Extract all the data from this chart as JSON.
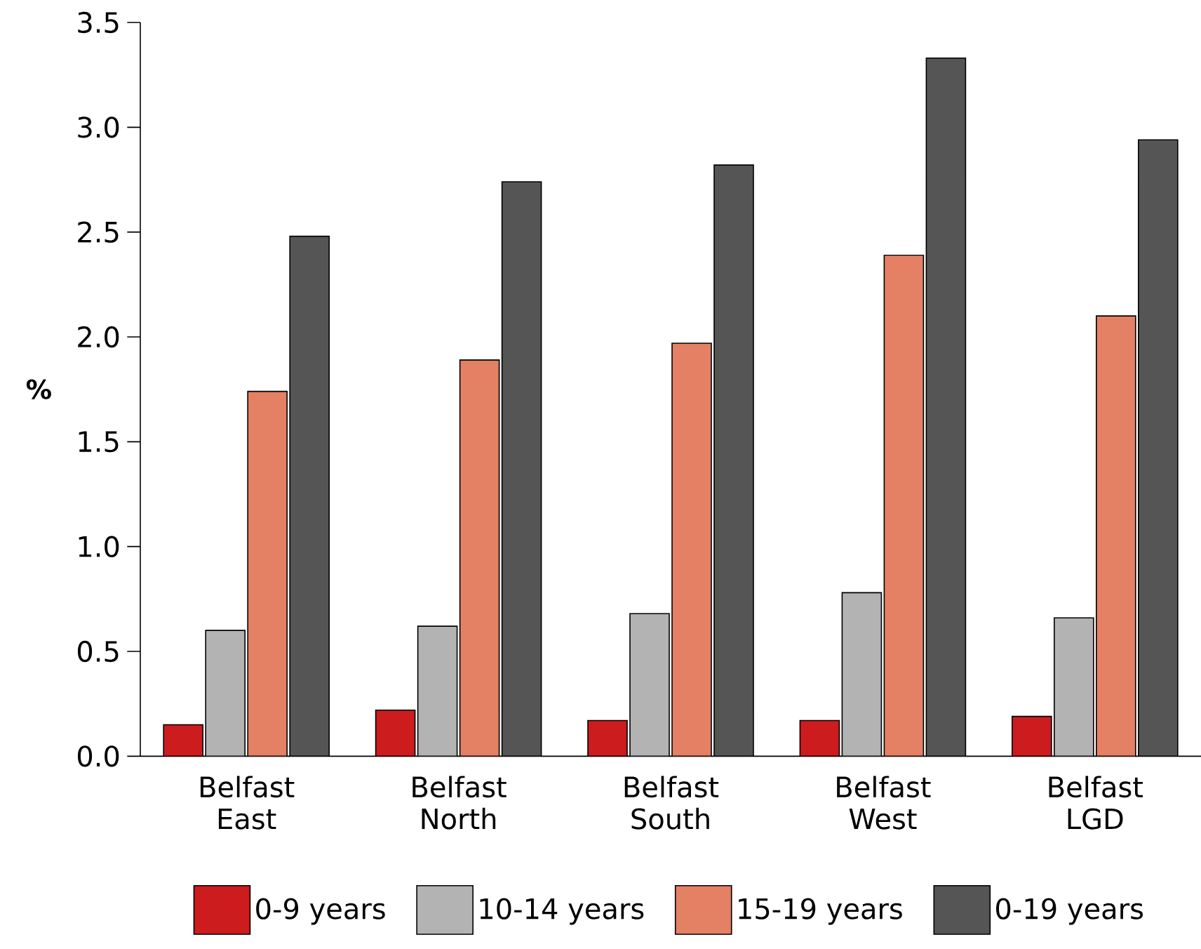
{
  "chart_data": {
    "type": "bar",
    "ylabel": "%",
    "categories": [
      "Belfast East",
      "Belfast North",
      "Belfast South",
      "Belfast West",
      "Belfast LGD"
    ],
    "series": [
      {
        "name": "0-9 years",
        "color": "#cc1c1e",
        "values": [
          0.15,
          0.22,
          0.17,
          0.17,
          0.19
        ]
      },
      {
        "name": "10-14 years",
        "color": "#b3b3b3",
        "values": [
          0.6,
          0.62,
          0.68,
          0.78,
          0.66
        ]
      },
      {
        "name": "15-19 years",
        "color": "#e48064",
        "values": [
          1.74,
          1.89,
          1.97,
          2.39,
          2.1
        ]
      },
      {
        "name": "0-19 years",
        "color": "#555555",
        "values": [
          2.48,
          2.74,
          2.82,
          3.33,
          2.94
        ]
      }
    ],
    "ylim": [
      0,
      3.5
    ],
    "yticks": [
      {
        "value": 0,
        "label": "0.0"
      },
      {
        "value": 0.5,
        "label": "0.5"
      },
      {
        "value": 1,
        "label": "1.0"
      },
      {
        "value": 1.5,
        "label": "1.5"
      },
      {
        "value": 2,
        "label": "2.0"
      },
      {
        "value": 2.5,
        "label": "2.5"
      },
      {
        "value": 3,
        "label": "3.0"
      },
      {
        "value": 3.5,
        "label": "3.5"
      }
    ],
    "grid": false,
    "legend": "bottom"
  }
}
